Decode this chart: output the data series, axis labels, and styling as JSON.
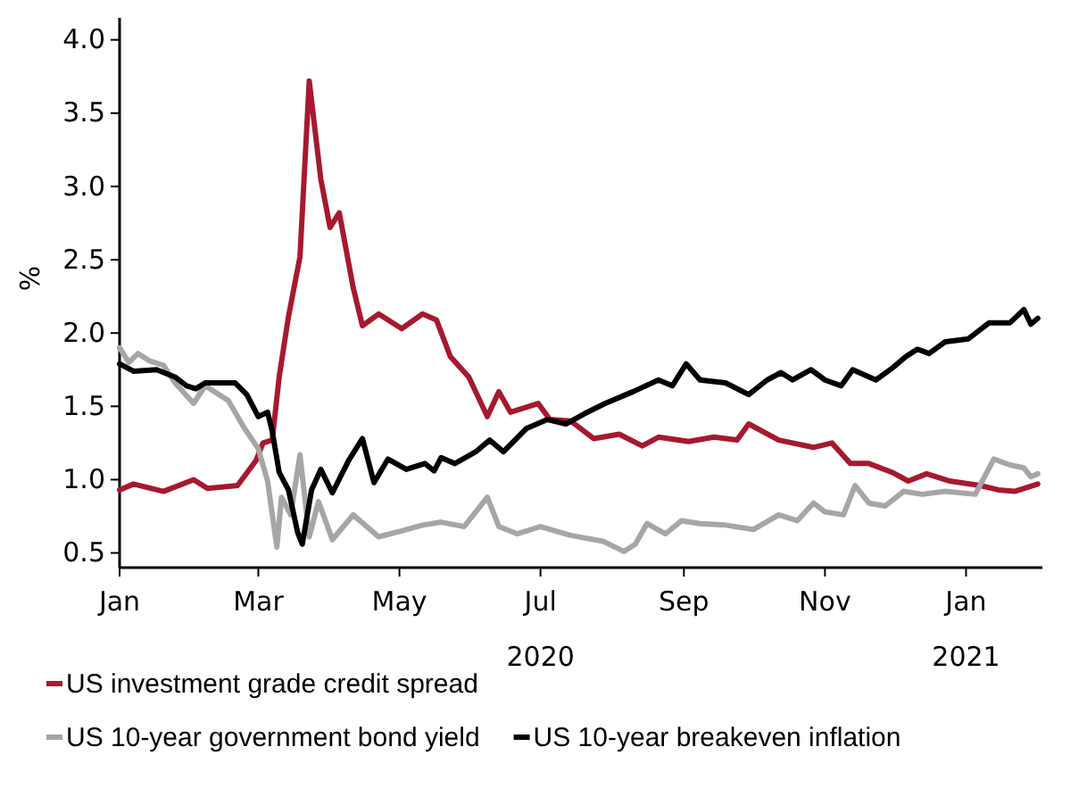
{
  "chart_data": {
    "type": "line",
    "ylabel": "%",
    "ylim": [
      0.4,
      4.15
    ],
    "yticks": [
      0.5,
      {
        "value": 1,
        "label": "1.0"
      },
      1.5,
      {
        "value": 2,
        "label": "2.0"
      },
      2.5,
      {
        "value": 3,
        "label": "3.0"
      },
      3.5,
      {
        "value": 4,
        "label": "4.0"
      }
    ],
    "xlim": [
      "2020-01-01",
      "2021-02-03"
    ],
    "xticks": [
      {
        "value": "2020-01-01",
        "label": "Jan"
      },
      {
        "value": "2020-03-01",
        "label": "Mar"
      },
      {
        "value": "2020-05-01",
        "label": "May"
      },
      {
        "value": "2020-07-01",
        "label": "Jul\n2020"
      },
      {
        "value": "2020-09-01",
        "label": "Sep"
      },
      {
        "value": "2020-11-01",
        "label": "Nov"
      },
      {
        "value": "2021-01-01",
        "label": "Jan\n2021"
      }
    ],
    "grid": false,
    "legend": "bottom",
    "line_style": "solid",
    "marker": "none",
    "series": [
      {
        "name": "US investment grade credit spread",
        "color": "#a6192e",
        "x": [
          "2020-01-01",
          "2020-01-07",
          "2020-01-20",
          "2020-02-02",
          "2020-02-08",
          "2020-02-21",
          "2020-02-29",
          "2020-03-03",
          "2020-03-07",
          "2020-03-10",
          "2020-03-14",
          "2020-03-19",
          "2020-03-23",
          "2020-03-28",
          "2020-04-01",
          "2020-04-05",
          "2020-04-11",
          "2020-04-15",
          "2020-04-22",
          "2020-05-02",
          "2020-05-11",
          "2020-05-17",
          "2020-05-23",
          "2020-05-31",
          "2020-06-08",
          "2020-06-13",
          "2020-06-18",
          "2020-06-30",
          "2020-07-05",
          "2020-07-14",
          "2020-07-24",
          "2020-08-04",
          "2020-08-14",
          "2020-08-21",
          "2020-09-03",
          "2020-09-14",
          "2020-09-24",
          "2020-09-29",
          "2020-10-12",
          "2020-10-27",
          "2020-11-04",
          "2020-11-12",
          "2020-11-20",
          "2020-11-30",
          "2020-12-07",
          "2020-12-15",
          "2020-12-25",
          "2021-01-07",
          "2021-01-15",
          "2021-01-22",
          "2021-02-01"
        ],
        "values": [
          0.93,
          0.97,
          0.92,
          1.0,
          0.94,
          0.96,
          1.13,
          1.25,
          1.27,
          1.7,
          2.11,
          2.52,
          3.72,
          3.05,
          2.72,
          2.82,
          2.31,
          2.05,
          2.13,
          2.03,
          2.13,
          2.09,
          1.84,
          1.7,
          1.43,
          1.6,
          1.46,
          1.52,
          1.41,
          1.4,
          1.28,
          1.31,
          1.23,
          1.29,
          1.26,
          1.29,
          1.27,
          1.38,
          1.27,
          1.22,
          1.25,
          1.11,
          1.11,
          1.05,
          0.99,
          1.04,
          0.99,
          0.96,
          0.93,
          0.92,
          0.97
        ]
      },
      {
        "name": "US 10-year government bond yield",
        "color": "#a6a6a6",
        "x": [
          "2020-01-01",
          "2020-01-05",
          "2020-01-09",
          "2020-01-14",
          "2020-01-20",
          "2020-01-25",
          "2020-02-02",
          "2020-02-07",
          "2020-02-11",
          "2020-02-17",
          "2020-02-24",
          "2020-03-01",
          "2020-03-05",
          "2020-03-09",
          "2020-03-11",
          "2020-03-15",
          "2020-03-19",
          "2020-03-23",
          "2020-03-27",
          "2020-04-02",
          "2020-04-11",
          "2020-04-22",
          "2020-05-02",
          "2020-05-11",
          "2020-05-19",
          "2020-05-29",
          "2020-06-08",
          "2020-06-13",
          "2020-06-21",
          "2020-07-01",
          "2020-07-14",
          "2020-07-28",
          "2020-08-06",
          "2020-08-11",
          "2020-08-16",
          "2020-08-24",
          "2020-08-31",
          "2020-09-08",
          "2020-09-19",
          "2020-10-01",
          "2020-10-12",
          "2020-10-20",
          "2020-10-27",
          "2020-11-01",
          "2020-11-09",
          "2020-11-14",
          "2020-11-20",
          "2020-11-27",
          "2020-12-05",
          "2020-12-13",
          "2020-12-23",
          "2021-01-05",
          "2021-01-13",
          "2021-01-20",
          "2021-01-26",
          "2021-01-29",
          "2021-02-01"
        ],
        "values": [
          1.9,
          1.8,
          1.86,
          1.81,
          1.78,
          1.66,
          1.52,
          1.64,
          1.6,
          1.54,
          1.35,
          1.21,
          0.99,
          0.54,
          0.88,
          0.76,
          1.17,
          0.61,
          0.85,
          0.59,
          0.76,
          0.61,
          0.65,
          0.69,
          0.71,
          0.68,
          0.88,
          0.68,
          0.63,
          0.68,
          0.62,
          0.58,
          0.51,
          0.56,
          0.7,
          0.63,
          0.72,
          0.7,
          0.69,
          0.66,
          0.76,
          0.72,
          0.84,
          0.78,
          0.76,
          0.96,
          0.84,
          0.82,
          0.92,
          0.9,
          0.92,
          0.9,
          1.14,
          1.1,
          1.08,
          1.02,
          1.04
        ]
      },
      {
        "name": "US 10-year breakeven inflation",
        "color": "#000000",
        "x": [
          "2020-01-01",
          "2020-01-07",
          "2020-01-17",
          "2020-01-25",
          "2020-01-30",
          "2020-02-03",
          "2020-02-07",
          "2020-02-20",
          "2020-02-25",
          "2020-03-01",
          "2020-03-05",
          "2020-03-07",
          "2020-03-10",
          "2020-03-14",
          "2020-03-18",
          "2020-03-20",
          "2020-03-24",
          "2020-03-28",
          "2020-04-02",
          "2020-04-09",
          "2020-04-15",
          "2020-04-20",
          "2020-04-26",
          "2020-05-04",
          "2020-05-12",
          "2020-05-16",
          "2020-05-19",
          "2020-05-25",
          "2020-06-03",
          "2020-06-09",
          "2020-06-15",
          "2020-06-25",
          "2020-07-04",
          "2020-07-12",
          "2020-07-20",
          "2020-07-29",
          "2020-08-10",
          "2020-08-21",
          "2020-08-27",
          "2020-09-02",
          "2020-09-08",
          "2020-09-19",
          "2020-09-29",
          "2020-10-07",
          "2020-10-13",
          "2020-10-18",
          "2020-10-26",
          "2020-11-01",
          "2020-11-08",
          "2020-11-13",
          "2020-11-23",
          "2020-11-30",
          "2020-12-06",
          "2020-12-11",
          "2020-12-16",
          "2020-12-23",
          "2021-01-02",
          "2021-01-11",
          "2021-01-20",
          "2021-01-26",
          "2021-01-29",
          "2021-02-01"
        ],
        "values": [
          1.79,
          1.74,
          1.75,
          1.7,
          1.64,
          1.62,
          1.66,
          1.66,
          1.58,
          1.43,
          1.46,
          1.33,
          1.05,
          0.93,
          0.64,
          0.56,
          0.93,
          1.07,
          0.91,
          1.13,
          1.28,
          0.98,
          1.14,
          1.07,
          1.11,
          1.06,
          1.15,
          1.11,
          1.19,
          1.27,
          1.19,
          1.35,
          1.41,
          1.38,
          1.45,
          1.52,
          1.6,
          1.68,
          1.64,
          1.79,
          1.68,
          1.66,
          1.58,
          1.68,
          1.73,
          1.68,
          1.75,
          1.68,
          1.64,
          1.75,
          1.68,
          1.76,
          1.84,
          1.89,
          1.86,
          1.94,
          1.96,
          2.07,
          2.07,
          2.16,
          2.06,
          2.1
        ]
      }
    ]
  }
}
